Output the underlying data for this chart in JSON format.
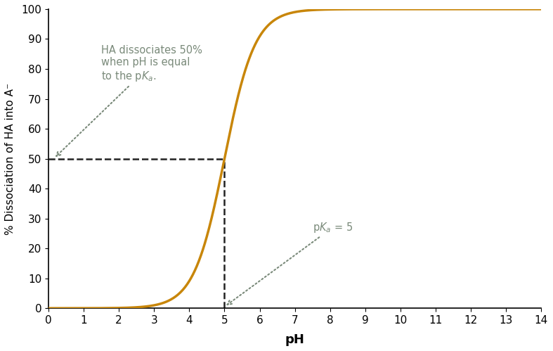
{
  "pka": 5,
  "ph_min": 0,
  "ph_max": 14,
  "y_min": 0,
  "y_max": 100,
  "curve_color": "#C8860A",
  "curve_linewidth": 2.5,
  "dashed_line_color": "#222222",
  "dashed_linewidth": 1.8,
  "annotation_color": "#7A8A7A",
  "xlabel": "pH",
  "ylabel": "% Dissociation of HA into A⁻",
  "xlabel_fontsize": 13,
  "ylabel_fontsize": 11,
  "tick_fontsize": 11,
  "annotation1_text": "HA dissociates 50%\nwhen pH is equal\nto the pΚₐ.",
  "annotation2_text": "pΚₐ = 5",
  "bg_color": "#ffffff",
  "yticks": [
    0,
    10,
    20,
    30,
    40,
    50,
    60,
    70,
    80,
    90,
    100
  ],
  "xticks": [
    0,
    1,
    2,
    3,
    4,
    5,
    6,
    7,
    8,
    9,
    10,
    11,
    12,
    13,
    14
  ]
}
